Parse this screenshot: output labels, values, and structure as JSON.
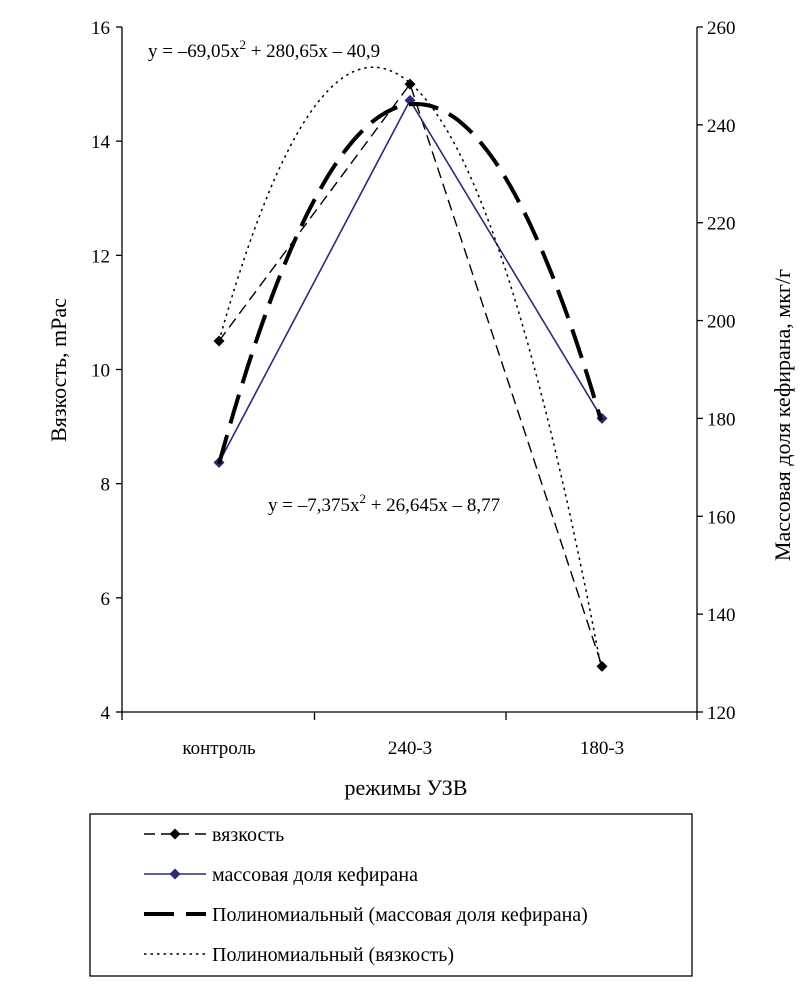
{
  "chart_data": {
    "type": "line",
    "categories": [
      "контроль",
      "240-3",
      "180-3"
    ],
    "xlabel": "режимы УЗВ",
    "ylabel": "Вязкость, mPас",
    "y2label": "Массовая доля кефирана, мкг/г",
    "ylim": [
      4,
      16
    ],
    "y2lim": [
      120,
      260
    ],
    "yticks": [
      4,
      6,
      8,
      10,
      12,
      14,
      16
    ],
    "y2ticks": [
      120,
      140,
      160,
      180,
      200,
      220,
      240,
      260
    ],
    "grid": false,
    "legend_position": "bottom",
    "series": [
      {
        "name": "вязкость",
        "axis": "left",
        "style": "dashed",
        "marker": "diamond",
        "color": "#000000",
        "values": [
          10.5,
          15.0,
          4.8
        ]
      },
      {
        "name": "массовая доля кефирана",
        "axis": "right",
        "style": "solid",
        "marker": "diamond",
        "color": "#2b2b7a",
        "values": [
          171,
          245,
          180
        ]
      },
      {
        "name": "Полиномиальный (массовая доля кефирана)",
        "axis": "right",
        "style": "long-dash",
        "color": "#000000",
        "trend_of": "массовая доля кефирана",
        "coefficients": {
          "a": -69.05,
          "b": 280.65,
          "c": -40.9
        }
      },
      {
        "name": "Полиномиальный (вязкость)",
        "axis": "left",
        "style": "dotted",
        "color": "#000000",
        "trend_of": "вязкость",
        "coefficients": {
          "a": -7.375,
          "b": 26.645,
          "c": -8.77
        }
      }
    ],
    "annotations": {
      "eq_top": {
        "pre": "y = –69,05x",
        "sup": "2",
        "post": " + 280,65x – 40,9"
      },
      "eq_mid": {
        "pre": "y = –7,375x",
        "sup": "2",
        "post": " + 26,645x – 8,77"
      }
    }
  }
}
